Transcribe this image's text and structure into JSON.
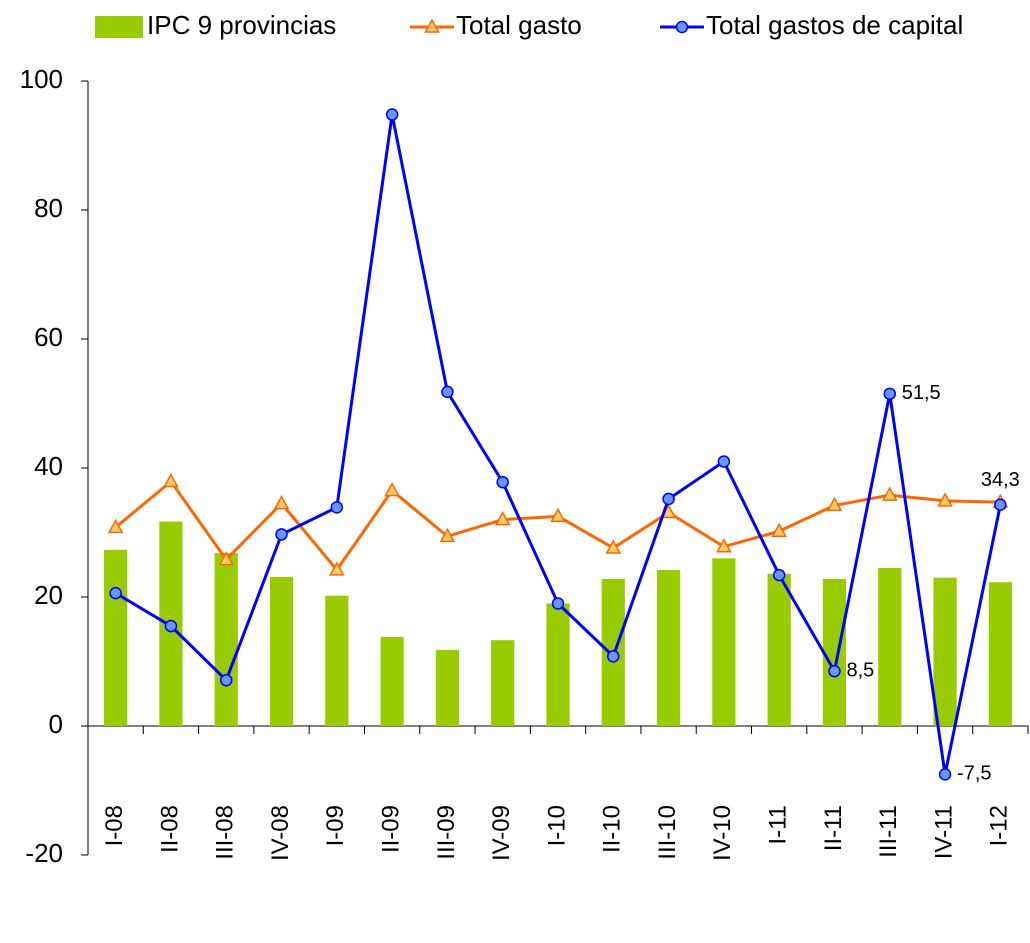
{
  "chart_data": {
    "type": "combo",
    "categories": [
      "I-08",
      "II-08",
      "III-08",
      "IV-08",
      "I-09",
      "II-09",
      "III-09",
      "IV-09",
      "I-10",
      "II-10",
      "III-10",
      "IV-10",
      "I-11",
      "II-11",
      "III-11",
      "IV-11",
      "I-12"
    ],
    "series": [
      {
        "name": "IPC 9 provincias",
        "type": "bar",
        "color": "#99cc00",
        "values": [
          27.3,
          31.7,
          26.8,
          23.1,
          20.2,
          13.8,
          11.8,
          13.3,
          19.0,
          22.8,
          24.2,
          26.0,
          23.6,
          22.8,
          24.5,
          23.0,
          22.3
        ]
      },
      {
        "name": "Total gasto",
        "type": "line",
        "marker": "triangle",
        "color": "#ff6600",
        "values": [
          30.8,
          37.9,
          25.8,
          34.5,
          24.2,
          36.5,
          29.4,
          32.0,
          32.5,
          27.6,
          33.1,
          27.8,
          30.2,
          34.2,
          35.8,
          34.9,
          34.7
        ]
      },
      {
        "name": "Total gastos de capital",
        "type": "line",
        "marker": "circle",
        "color": "#0000ff",
        "values": [
          20.6,
          15.5,
          7.1,
          29.7,
          33.9,
          94.8,
          51.8,
          37.8,
          19.0,
          10.8,
          35.2,
          41.0,
          23.4,
          8.5,
          51.5,
          -7.5,
          34.3
        ],
        "value_labels": [
          null,
          null,
          null,
          null,
          null,
          null,
          null,
          null,
          null,
          null,
          null,
          null,
          null,
          "8,5",
          "51,5",
          "-7,5",
          "34,3"
        ]
      }
    ],
    "ylim": [
      -20,
      100
    ],
    "yticks": [
      -20,
      0,
      20,
      40,
      60,
      80,
      100
    ],
    "legend": "top"
  }
}
